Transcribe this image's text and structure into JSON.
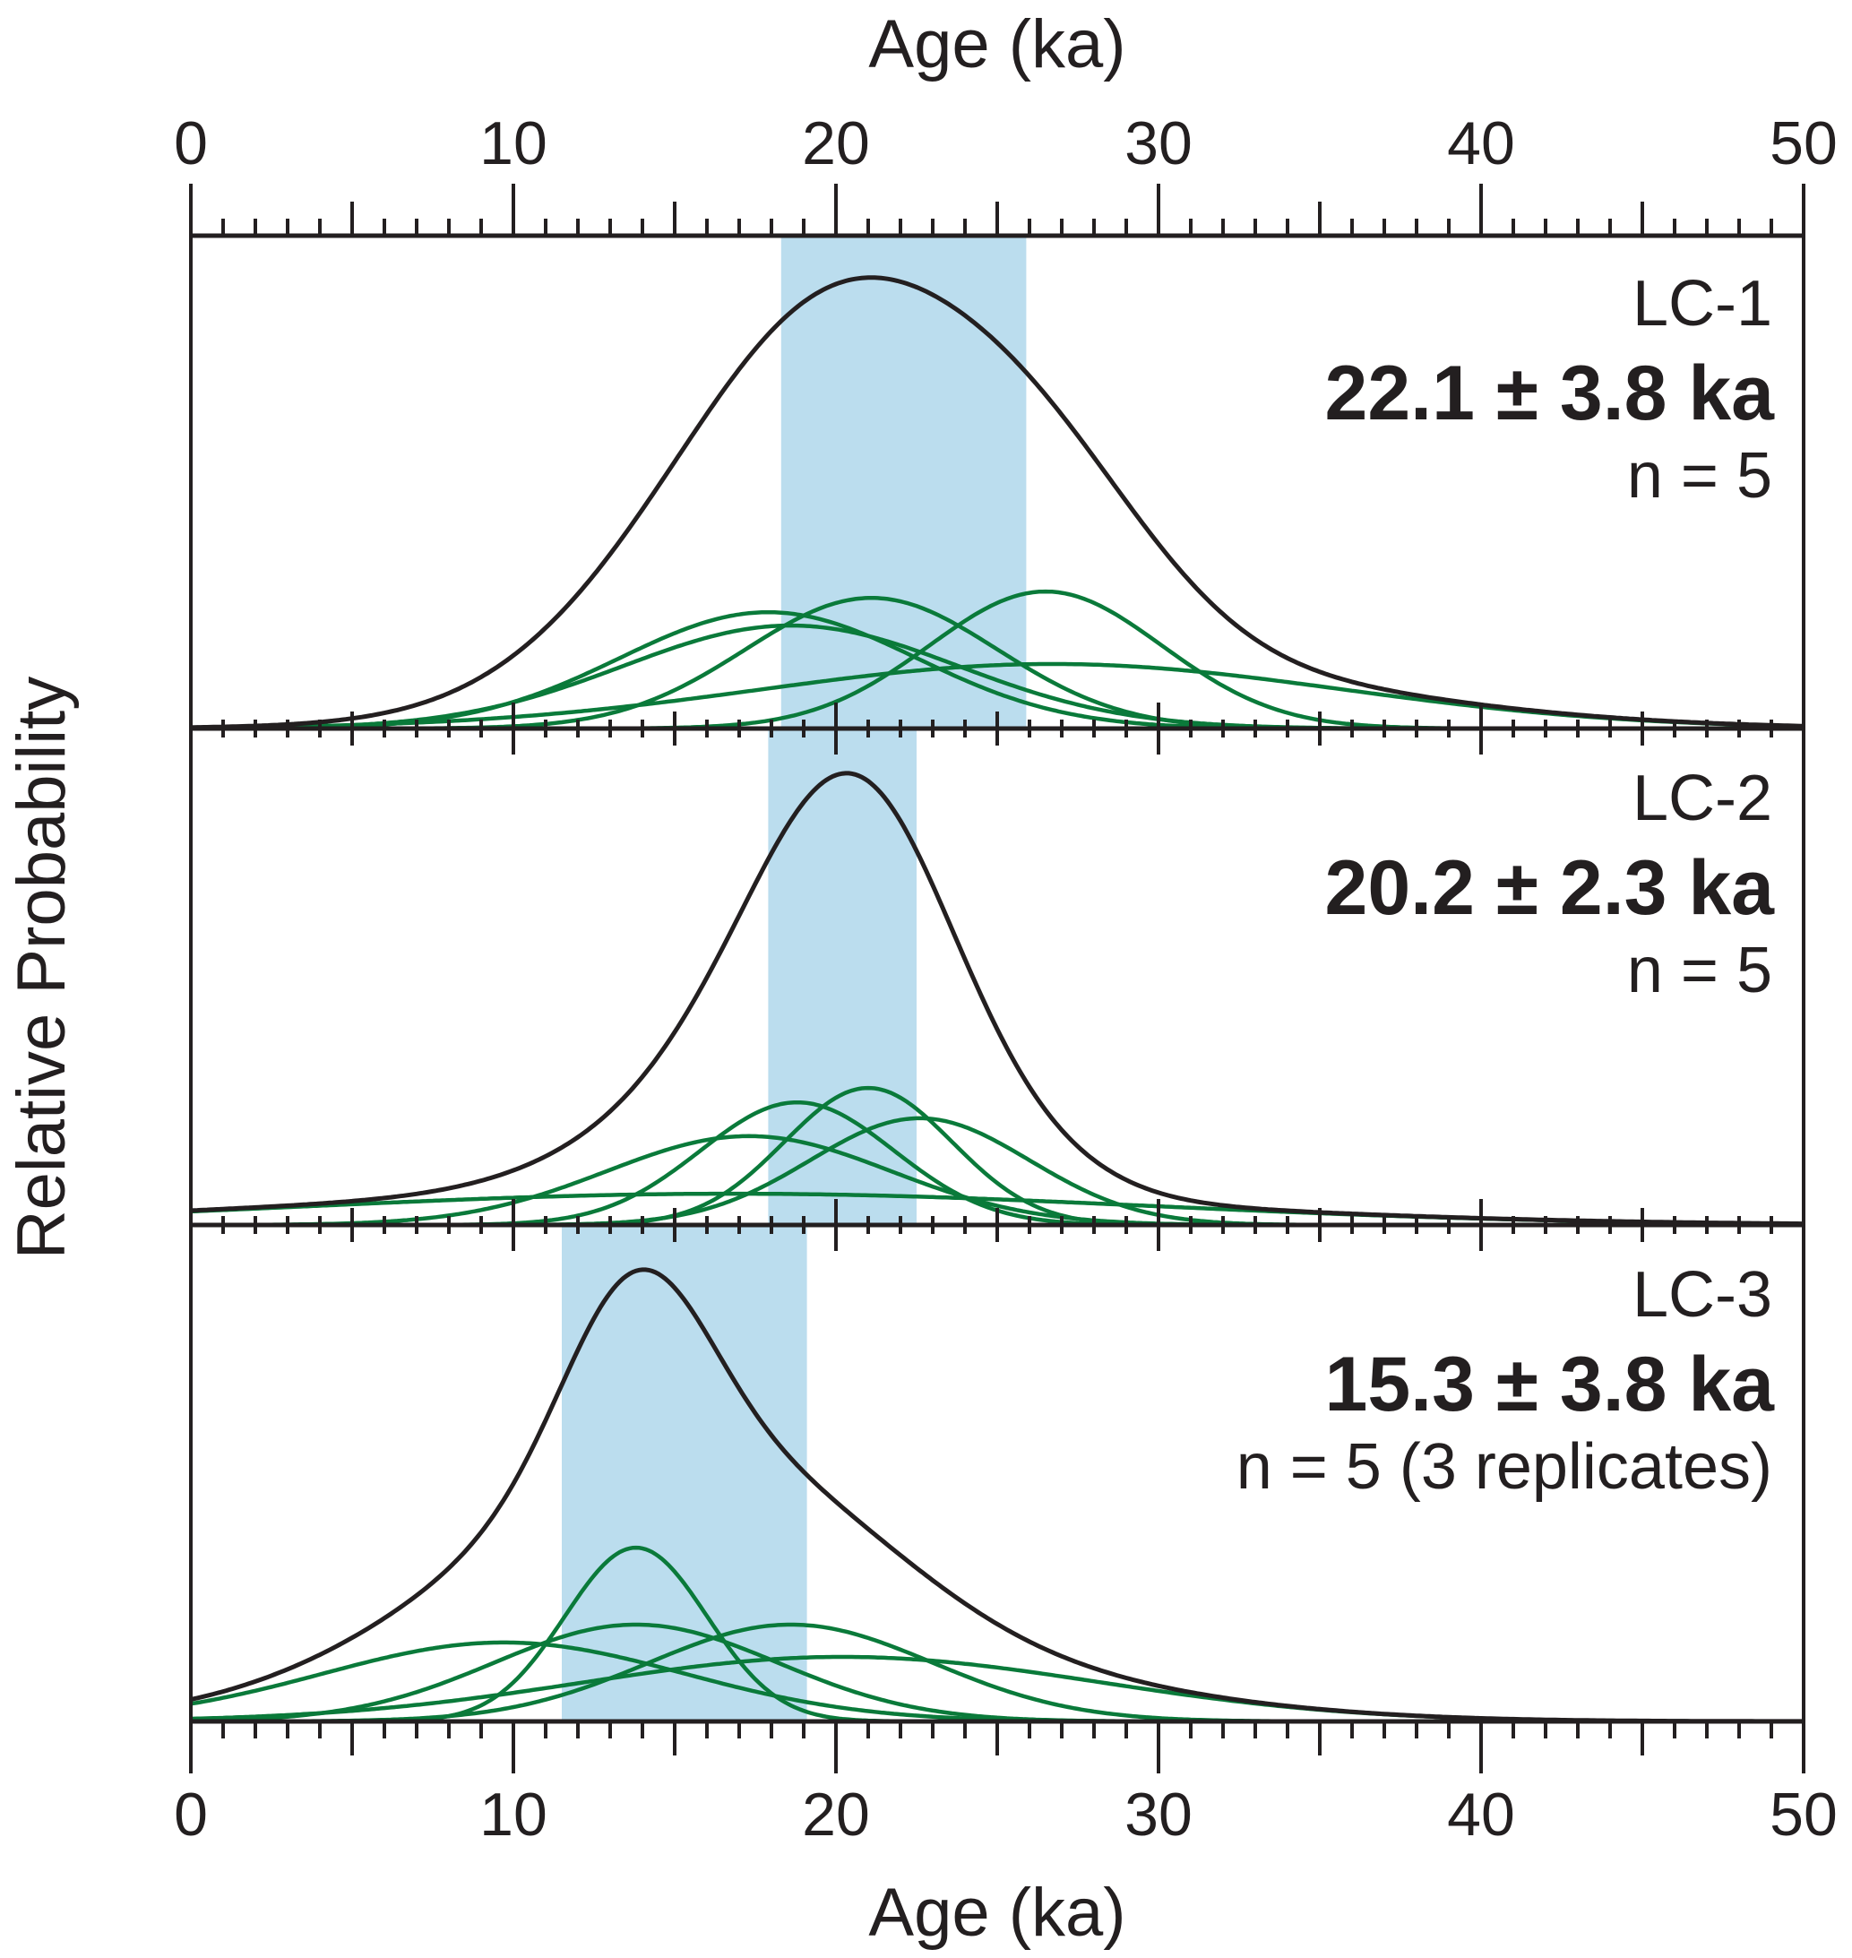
{
  "chart_data": {
    "type": "line",
    "title": "",
    "xlabel": "Age (ka)",
    "ylabel": "Relative Probability",
    "xlim": [
      0,
      50
    ],
    "x_ticks": [
      0,
      10,
      20,
      30,
      40,
      50
    ],
    "x_minor_step": 1,
    "x_medium_step": 5,
    "grid": false,
    "x_axis_position": "top and bottom",
    "colors": {
      "summary_curve": "#231f20",
      "sample_curves": "#0a7a3a",
      "uncertainty_band": "#bbddee",
      "axis": "#231f20"
    },
    "panels": [
      {
        "id": "LC-1",
        "age_label": "22.1 ± 3.8 ka",
        "n_label": "n = 5",
        "mean_age": 22.1,
        "uncertainty": 3.8,
        "band": [
          18.3,
          25.9
        ],
        "summary_peak": {
          "age": 21.8,
          "relative_height": 0.915
        },
        "samples": [
          {
            "age": 17.9,
            "sigma": 4.6,
            "relative_height": 0.236
          },
          {
            "age": 18.6,
            "sigma": 5.2,
            "relative_height": 0.209
          },
          {
            "age": 21.1,
            "sigma": 3.9,
            "relative_height": 0.265
          },
          {
            "age": 26.5,
            "sigma": 3.6,
            "relative_height": 0.278
          },
          {
            "age": 26.7,
            "sigma": 9.0,
            "relative_height": 0.131
          }
        ]
      },
      {
        "id": "LC-2",
        "age_label": "20.2 ± 2.3 ka",
        "n_label": "n = 5",
        "mean_age": 20.2,
        "uncertainty": 2.3,
        "band": [
          17.9,
          22.5
        ],
        "summary_peak": {
          "age": 20.3,
          "relative_height": 0.91
        },
        "samples": [
          {
            "age": 18.8,
            "sigma": 3.0,
            "relative_height": 0.247
          },
          {
            "age": 21.0,
            "sigma": 2.6,
            "relative_height": 0.276
          },
          {
            "age": 22.6,
            "sigma": 3.4,
            "relative_height": 0.215
          },
          {
            "age": 17.3,
            "sigma": 4.4,
            "relative_height": 0.179
          },
          {
            "age": 16.8,
            "sigma": 13.0,
            "relative_height": 0.063
          }
        ]
      },
      {
        "id": "LC-3",
        "age_label": "15.3 ± 3.8 ka",
        "n_label": "n = 5 (3 replicates)",
        "mean_age": 15.3,
        "uncertainty": 3.8,
        "band": [
          11.5,
          19.1
        ],
        "summary_peak": {
          "age": 14.2,
          "relative_height": 0.91
        },
        "samples": [
          {
            "age": 13.8,
            "sigma": 2.2,
            "relative_height": 0.35
          },
          {
            "age": 13.8,
            "sigma": 4.4,
            "relative_height": 0.195
          },
          {
            "age": 18.6,
            "sigma": 4.4,
            "relative_height": 0.195
          },
          {
            "age": 9.7,
            "sigma": 5.6,
            "relative_height": 0.159
          },
          {
            "age": 20.2,
            "sigma": 8.0,
            "relative_height": 0.13
          }
        ]
      }
    ]
  }
}
